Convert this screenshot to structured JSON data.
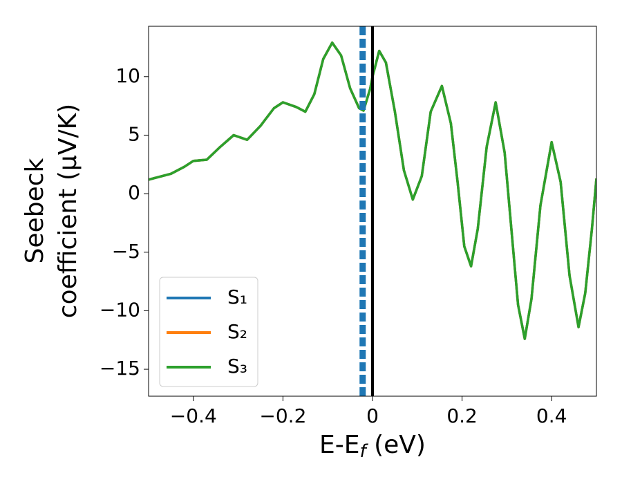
{
  "chart_data": {
    "type": "line",
    "xlabel": [
      "E-E",
      "f",
      " (eV)"
    ],
    "ylabel": [
      "Seebeck",
      "coefficient  (μV/K)"
    ],
    "x": [
      -0.5,
      -0.45,
      -0.42,
      -0.4,
      -0.37,
      -0.34,
      -0.31,
      -0.28,
      -0.25,
      -0.22,
      -0.2,
      -0.17,
      -0.15,
      -0.13,
      -0.11,
      -0.09,
      -0.07,
      -0.05,
      -0.03,
      -0.02,
      -0.005,
      0.0,
      0.015,
      0.03,
      0.05,
      0.07,
      0.09,
      0.11,
      0.13,
      0.155,
      0.175,
      0.19,
      0.205,
      0.22,
      0.235,
      0.255,
      0.275,
      0.295,
      0.31,
      0.325,
      0.34,
      0.355,
      0.375,
      0.4,
      0.42,
      0.44,
      0.46,
      0.475,
      0.49,
      0.5
    ],
    "series": [
      {
        "name": "S₁",
        "color": "#1f77b4",
        "values": [
          1.2,
          1.7,
          2.3,
          2.8,
          2.9,
          4.0,
          5.0,
          4.6,
          5.8,
          7.3,
          7.8,
          7.4,
          7.0,
          8.5,
          11.5,
          12.9,
          11.8,
          9.0,
          7.3,
          7.1,
          9.0,
          10.0,
          12.2,
          11.2,
          7.0,
          2.0,
          -0.5,
          1.5,
          7.0,
          9.2,
          6.0,
          1.0,
          -4.5,
          -6.2,
          -3.0,
          4.0,
          7.8,
          3.5,
          -3.0,
          -9.5,
          -12.4,
          -9.0,
          -1.0,
          4.4,
          1.0,
          -7.0,
          -11.4,
          -8.5,
          -3.0,
          1.3
        ]
      },
      {
        "name": "S₂",
        "color": "#ff7f0e",
        "values": [
          1.2,
          1.7,
          2.3,
          2.8,
          2.9,
          4.0,
          5.0,
          4.6,
          5.8,
          7.3,
          7.8,
          7.4,
          7.0,
          8.5,
          11.5,
          12.9,
          11.8,
          9.0,
          7.3,
          7.1,
          9.0,
          10.0,
          12.2,
          11.2,
          7.0,
          2.0,
          -0.5,
          1.5,
          7.0,
          9.2,
          6.0,
          1.0,
          -4.5,
          -6.2,
          -3.0,
          4.0,
          7.8,
          3.5,
          -3.0,
          -9.5,
          -12.4,
          -9.0,
          -1.0,
          4.4,
          1.0,
          -7.0,
          -11.4,
          -8.5,
          -3.0,
          1.3
        ]
      },
      {
        "name": "S₃",
        "color": "#2ca02c",
        "values": [
          1.2,
          1.7,
          2.3,
          2.8,
          2.9,
          4.0,
          5.0,
          4.6,
          5.8,
          7.3,
          7.8,
          7.4,
          7.0,
          8.5,
          11.5,
          12.9,
          11.8,
          9.0,
          7.3,
          7.1,
          9.0,
          10.0,
          12.2,
          11.2,
          7.0,
          2.0,
          -0.5,
          1.5,
          7.0,
          9.2,
          6.0,
          1.0,
          -4.5,
          -6.2,
          -3.0,
          4.0,
          7.8,
          3.5,
          -3.0,
          -9.5,
          -12.4,
          -9.0,
          -1.0,
          4.4,
          1.0,
          -7.0,
          -11.4,
          -8.5,
          -3.0,
          1.3
        ]
      }
    ],
    "vlines": [
      {
        "x": -0.022,
        "color": "#1f77b4",
        "style": "dashed"
      },
      {
        "x": 0,
        "color": "#000000",
        "style": "solid"
      }
    ],
    "xlim": [
      -0.5,
      0.5
    ],
    "xticks": [
      {
        "value": -0.4,
        "label": "−0.4"
      },
      {
        "value": -0.2,
        "label": "−0.2"
      },
      0.0,
      0.2,
      0.4
    ],
    "ylim": [
      -17.3,
      14.3
    ],
    "yticks": [
      {
        "value": -15,
        "label": "−15"
      },
      {
        "value": -10,
        "label": "−10"
      },
      {
        "value": -5,
        "label": "−5"
      },
      0,
      5,
      10
    ],
    "legend": "lower left"
  }
}
